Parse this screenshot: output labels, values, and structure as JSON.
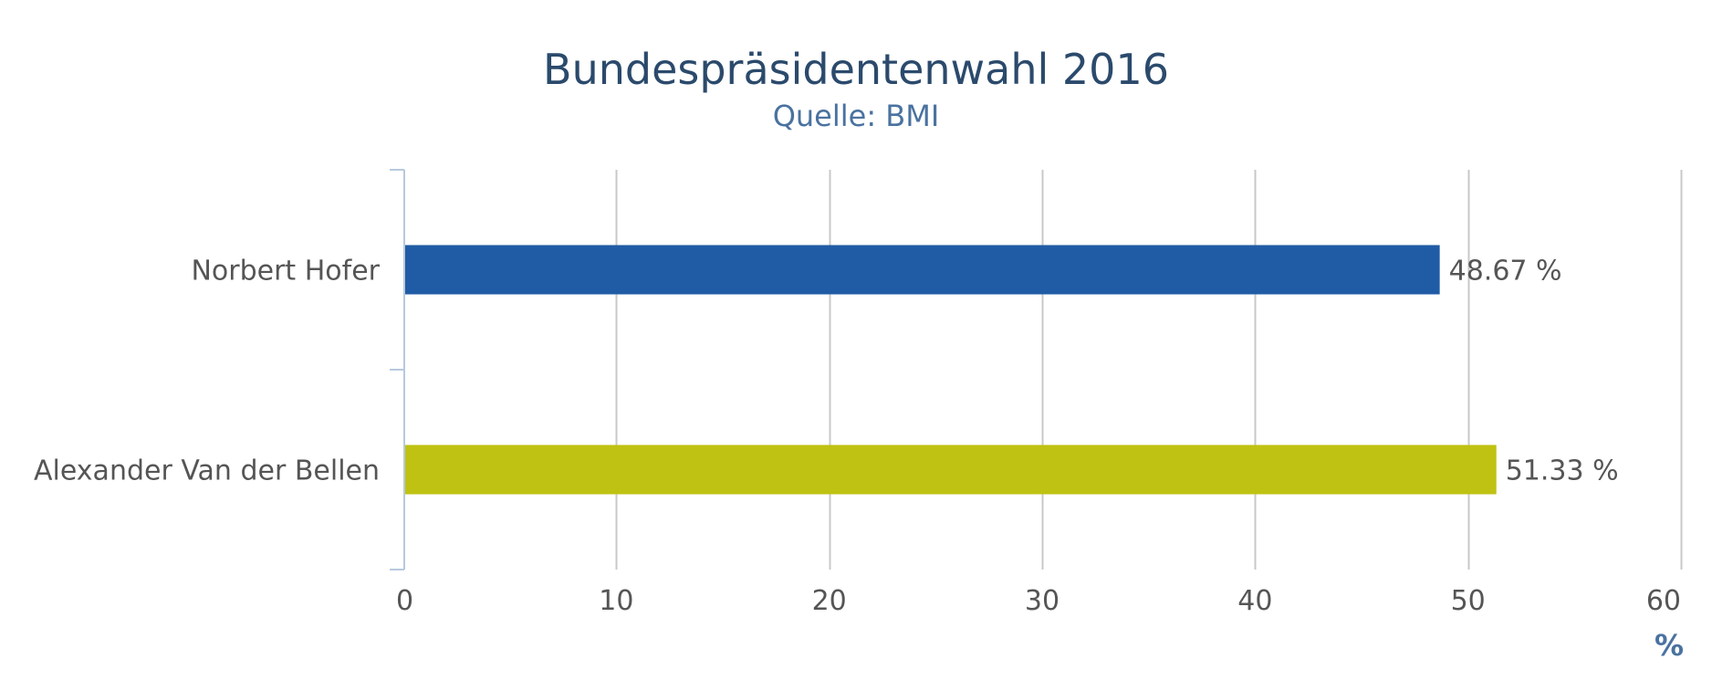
{
  "chart_data": {
    "type": "bar",
    "orientation": "horizontal",
    "title": "Bundespräsidentenwahl 2016",
    "subtitle": "Quelle: BMI",
    "categories": [
      "Norbert Hofer",
      "Alexander Van der Bellen"
    ],
    "values": [
      48.67,
      51.33
    ],
    "data_labels": [
      "48.67 %",
      "51.33 %"
    ],
    "colors": [
      "#205ca5",
      "#bfc212"
    ],
    "xlabel": "%",
    "ylabel": "",
    "xlim": [
      0,
      60
    ],
    "ticks": [
      0,
      10,
      20,
      30,
      40,
      50,
      60
    ],
    "tick_labels": [
      "0",
      "10",
      "20",
      "30",
      "40",
      "50",
      "60"
    ],
    "grid": true,
    "legend": "none"
  },
  "colors": {
    "title": "#2b4a6c",
    "subtitle": "#4a72a0",
    "grid": "#c8c8c8",
    "axis": "#b7c9dd",
    "label": "#555555"
  }
}
